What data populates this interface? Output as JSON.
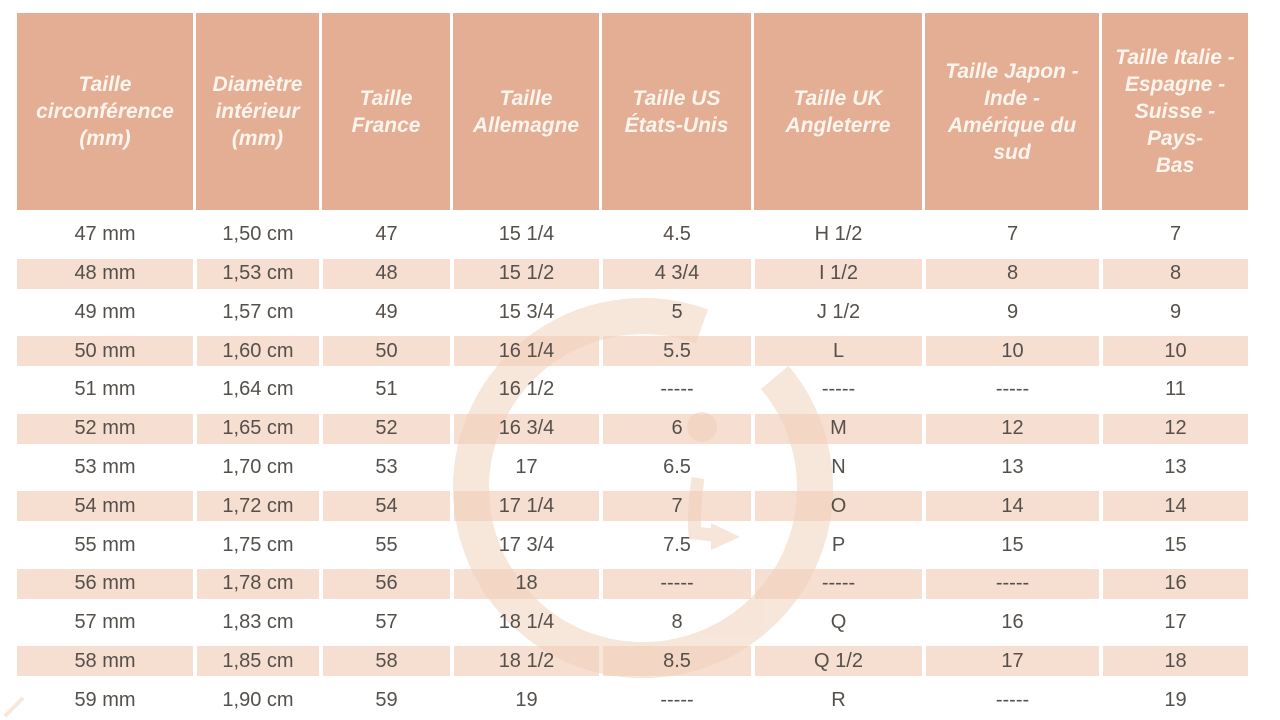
{
  "chart_data": {
    "type": "table",
    "title": "",
    "columns": [
      "Taille circonférence (mm)",
      "Diamètre intérieur (mm)",
      "Taille France",
      "Taille Allemagne",
      "Taille US États-Unis",
      "Taille UK Angleterre",
      "Taille Japon - Inde - Amérique du sud",
      "Taille Italie - Espagne - Suisse - Pays-Bas"
    ],
    "rows": [
      [
        "47 mm",
        "1,50 cm",
        "47",
        "15 1/4",
        "4.5",
        "H 1/2",
        "7",
        "7"
      ],
      [
        "48 mm",
        "1,53 cm",
        "48",
        "15 1/2",
        "4 3/4",
        "I 1/2",
        "8",
        "8"
      ],
      [
        "49 mm",
        "1,57 cm",
        "49",
        "15 3/4",
        "5",
        "J 1/2",
        "9",
        "9"
      ],
      [
        "50 mm",
        "1,60 cm",
        "50",
        "16 1/4",
        "5.5",
        "L",
        "10",
        "10"
      ],
      [
        "51 mm",
        "1,64 cm",
        "51",
        "16 1/2",
        "-----",
        "-----",
        "-----",
        "11"
      ],
      [
        "52 mm",
        "1,65 cm",
        "52",
        "16 3/4",
        "6",
        "M",
        "12",
        "12"
      ],
      [
        "53 mm",
        "1,70 cm",
        "53",
        "17",
        "6.5",
        "N",
        "13",
        "13"
      ],
      [
        "54 mm",
        "1,72 cm",
        "54",
        "17 1/4",
        "7",
        "O",
        "14",
        "14"
      ],
      [
        "55 mm",
        "1,75 cm",
        "55",
        "17 3/4",
        "7.5",
        "P",
        "15",
        "15"
      ],
      [
        "56 mm",
        "1,78 cm",
        "56",
        "18",
        "-----",
        "-----",
        "-----",
        "16"
      ],
      [
        "57 mm",
        "1,83 cm",
        "57",
        "18 1/4",
        "8",
        "Q",
        "16",
        "17"
      ],
      [
        "58 mm",
        "1,85 cm",
        "58",
        "18 1/2",
        "8.5",
        "Q 1/2",
        "17",
        "18"
      ],
      [
        "59 mm",
        "1,90 cm",
        "59",
        "19",
        "-----",
        "R",
        "-----",
        "19"
      ]
    ]
  },
  "table": {
    "headers_display": [
      "Taille\ncirconférence\n(mm)",
      "Diamètre\nintérieur\n(mm)",
      "Taille\nFrance",
      "Taille\nAllemagne",
      "Taille US\nÉtats-Unis",
      "Taille UK\nAngleterre",
      "Taille Japon -\nInde -\nAmérique du\nsud",
      "Taille Italie -\nEspagne -\nSuisse - Pays-\nBas"
    ]
  },
  "watermark": {
    "icon": "g-logo-watermark"
  },
  "colors": {
    "header_bg": "#e3ae93",
    "header_text": "#fcf5ee",
    "row_bg": "#ffffff",
    "row_alt_bg": "#f6ded0",
    "cell_text": "#55504b",
    "watermark": "#f0cdb5"
  }
}
